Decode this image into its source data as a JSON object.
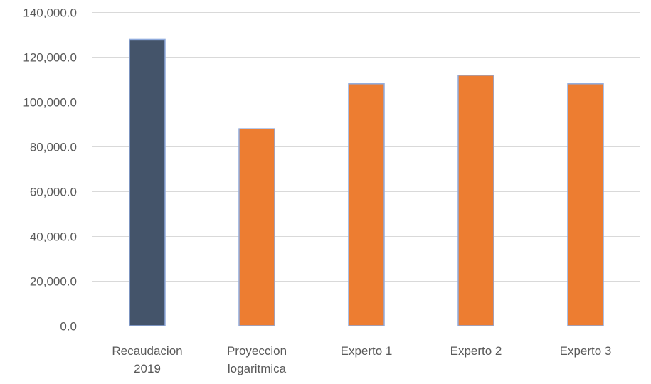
{
  "chart_data": {
    "type": "bar",
    "categories": [
      [
        "Recaudacion",
        "2019"
      ],
      [
        "Proyeccion",
        "logaritmica"
      ],
      [
        "Experto 1"
      ],
      [
        "Experto 2"
      ],
      [
        "Experto 3"
      ]
    ],
    "values": [
      127800,
      87900,
      108000,
      111800,
      108000
    ],
    "bar_colors": [
      "#44546a",
      "#ed7d31",
      "#ed7d31",
      "#ed7d31",
      "#ed7d31"
    ],
    "bar_outline_color": "#8faadc",
    "gridline_color": "#d9d9d9",
    "ylim": [
      0,
      140000
    ],
    "y_ticks": [
      {
        "value": 0,
        "label": "0.0"
      },
      {
        "value": 20000,
        "label": "20,000.0"
      },
      {
        "value": 40000,
        "label": "40,000.0"
      },
      {
        "value": 60000,
        "label": "60,000.0"
      },
      {
        "value": 80000,
        "label": "80,000.0"
      },
      {
        "value": 100000,
        "label": "100,000.0"
      },
      {
        "value": 120000,
        "label": "120,000.0"
      },
      {
        "value": 140000,
        "label": "140,000.0"
      }
    ],
    "grid": true,
    "legend": "none"
  }
}
